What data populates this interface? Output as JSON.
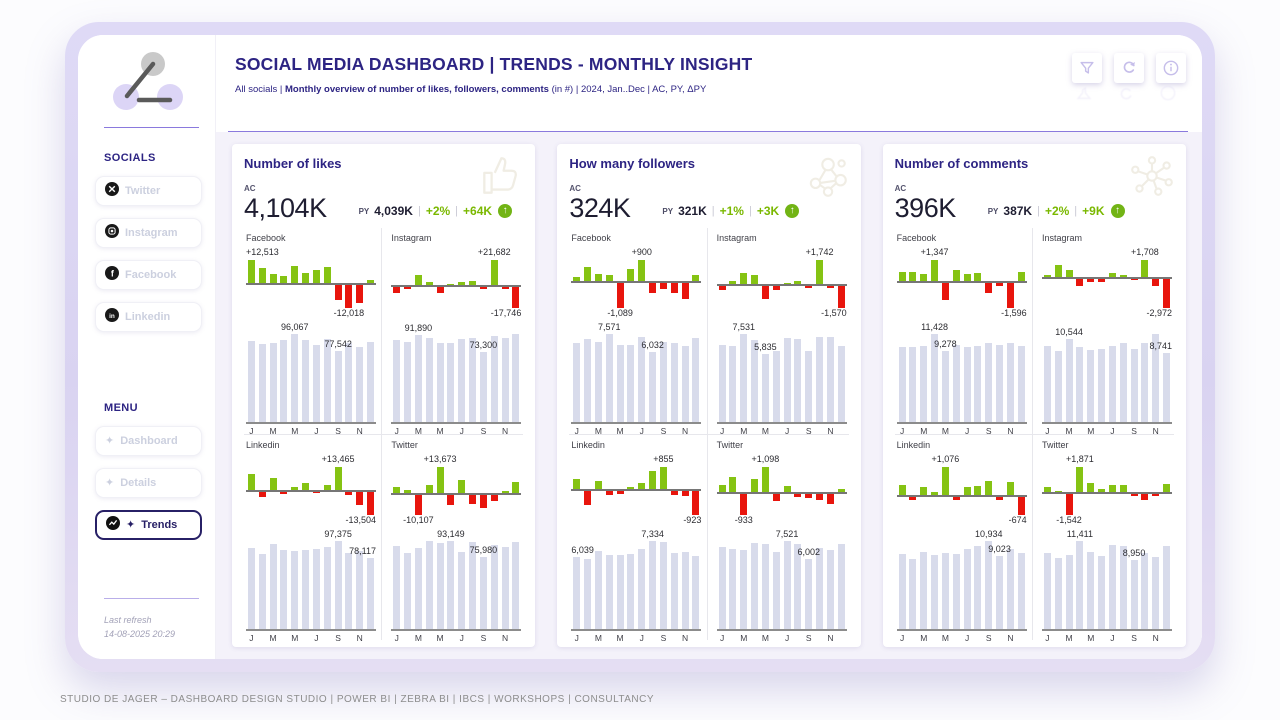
{
  "header": {
    "title": "SOCIAL MEDIA DASHBOARD | TRENDS - MONTHLY INSIGHT",
    "subtitle": {
      "pre": "All socials | ",
      "bold": "Monthly overview of number of likes, followers, comments",
      "post": " (in #) | 2024, Jan..Dec | AC, PY, ΔPY"
    },
    "toolbar_icons": [
      "filter-icon",
      "reset-icon",
      "info-icon"
    ]
  },
  "sidebar": {
    "logo_icon": "network-logo-icon",
    "socials_title": "SOCIALS",
    "socials": [
      {
        "label": "Twitter",
        "icon": "twitter-icon"
      },
      {
        "label": "Instagram",
        "icon": "instagram-icon"
      },
      {
        "label": "Facebook",
        "icon": "facebook-icon"
      },
      {
        "label": "Linkedin",
        "icon": "linkedin-icon"
      }
    ],
    "menu_title": "MENU",
    "menu": [
      {
        "label": "Dashboard",
        "active": false
      },
      {
        "label": "Details",
        "active": false
      },
      {
        "label": "Trends",
        "active": true
      }
    ],
    "last_refresh": {
      "label": "Last refresh",
      "value": "14-08-2025 20:29"
    }
  },
  "footer": {
    "text": "STUDIO DE JAGER – DASHBOARD DESIGN STUDIO | POWER BI | ZEBRA BI | IBCS | WORKSHOPS | CONSULTANCY"
  },
  "colors": {
    "accent_navy": "#2d2483",
    "divider_purple": "#8a79dd",
    "positive_green": "#85c313",
    "negative_red": "#e8150d",
    "kpi_green_text": "#7ab800",
    "column_fill": "#d8dbeb",
    "content_bg": "#f4f2fa"
  },
  "ticks": {
    "labels": [
      "J",
      "M",
      "M",
      "J",
      "S",
      "N"
    ],
    "indices": [
      0,
      2,
      4,
      6,
      8,
      10
    ]
  },
  "chart_data": [
    {
      "type": "bar",
      "title": "Number of likes",
      "icon": "thumbs-up-icon",
      "kpi": {
        "ac_label": "AC",
        "ac_value": "4,104K",
        "py_label": "PY",
        "py_value": "4,039K",
        "pct": "+2%",
        "delta": "+64K"
      },
      "categories": [
        "Jan",
        "Feb",
        "Mar",
        "Apr",
        "May",
        "Jun",
        "Jul",
        "Aug",
        "Sep",
        "Oct",
        "Nov",
        "Dec"
      ],
      "platforms": [
        {
          "name": "Facebook",
          "delta": [
            12513,
            8000,
            5200,
            4200,
            9500,
            5500,
            7400,
            9000,
            -7500,
            -12018,
            -9500,
            2000
          ],
          "delta_labels": [
            {
              "i": 0,
              "t": "+12,513"
            },
            {
              "i": 9,
              "t": "-12,018"
            }
          ],
          "values": [
            88000,
            85000,
            86500,
            90000,
            96067,
            89000,
            84000,
            91000,
            77542,
            86000,
            82000,
            87000
          ],
          "value_labels": [
            {
              "i": 4,
              "t": "96,067"
            },
            {
              "i": 8,
              "t": "77,542"
            }
          ]
        },
        {
          "name": "Instagram",
          "delta": [
            -4500,
            -900,
            9000,
            3200,
            -5000,
            400,
            2600,
            3600,
            -600,
            21682,
            -400,
            -17746
          ],
          "delta_labels": [
            {
              "i": 9,
              "t": "+21,682"
            },
            {
              "i": 11,
              "t": "-17,746"
            }
          ],
          "values": [
            86000,
            84000,
            91890,
            88000,
            83000,
            83500,
            87000,
            88000,
            73300,
            90000,
            88500,
            92500
          ],
          "value_labels": [
            {
              "i": 2,
              "t": "91,890"
            },
            {
              "i": 8,
              "t": "73,300"
            }
          ]
        },
        {
          "name": "Linkedin",
          "delta": [
            9500,
            -3000,
            7000,
            -1200,
            1500,
            3800,
            -900,
            2800,
            13465,
            -1500,
            -7500,
            -13504
          ],
          "delta_labels": [
            {
              "i": 8,
              "t": "+13,465"
            },
            {
              "i": 11,
              "t": "-13,504"
            }
          ],
          "values": [
            90000,
            83000,
            94000,
            87000,
            86000,
            87500,
            88500,
            91000,
            97375,
            84000,
            86000,
            78117
          ],
          "value_labels": [
            {
              "i": 8,
              "t": "97,375"
            },
            {
              "i": 11,
              "t": "78,117"
            }
          ]
        },
        {
          "name": "Twitter",
          "delta": [
            3500,
            1800,
            -10107,
            4500,
            13673,
            -5000,
            7000,
            -4500,
            -6500,
            -2800,
            1200,
            6000
          ],
          "delta_labels": [
            {
              "i": 4,
              "t": "+13,673"
            },
            {
              "i": 2,
              "t": "-10,107"
            }
          ],
          "values": [
            88000,
            80000,
            86000,
            93000,
            91000,
            93149,
            81000,
            92000,
            75980,
            89000,
            87000,
            92000
          ],
          "value_labels": [
            {
              "i": 5,
              "t": "93,149"
            },
            {
              "i": 8,
              "t": "75,980"
            }
          ]
        }
      ]
    },
    {
      "type": "bar",
      "title": "How many followers",
      "icon": "followers-network-icon",
      "kpi": {
        "ac_label": "AC",
        "ac_value": "324K",
        "py_label": "PY",
        "py_value": "321K",
        "pct": "+1%",
        "delta": "+3K"
      },
      "categories": [
        "Jan",
        "Feb",
        "Mar",
        "Apr",
        "May",
        "Jun",
        "Jul",
        "Aug",
        "Sep",
        "Oct",
        "Nov",
        "Dec"
      ],
      "platforms": [
        {
          "name": "Facebook",
          "delta": [
            150,
            600,
            300,
            250,
            -1089,
            500,
            900,
            -450,
            -250,
            -450,
            -700,
            250
          ],
          "delta_labels": [
            {
              "i": 6,
              "t": "+900"
            },
            {
              "i": 4,
              "t": "-1,089"
            }
          ],
          "values": [
            6800,
            7100,
            6900,
            7571,
            6600,
            6650,
            7300,
            6032,
            6900,
            6800,
            6500,
            7200
          ],
          "value_labels": [
            {
              "i": 3,
              "t": "7,571"
            },
            {
              "i": 7,
              "t": "6,032"
            }
          ]
        },
        {
          "name": "Instagram",
          "delta": [
            -300,
            250,
            800,
            650,
            -950,
            -300,
            100,
            250,
            -60,
            1742,
            -80,
            -1570
          ],
          "delta_labels": [
            {
              "i": 9,
              "t": "+1,742"
            },
            {
              "i": 11,
              "t": "-1,570"
            }
          ],
          "values": [
            6600,
            6500,
            7531,
            7000,
            5835,
            6100,
            7200,
            7100,
            6050,
            7250,
            7250,
            6500
          ],
          "value_labels": [
            {
              "i": 2,
              "t": "7,531"
            },
            {
              "i": 4,
              "t": "5,835"
            }
          ]
        },
        {
          "name": "Linkedin",
          "delta": [
            400,
            -550,
            300,
            -150,
            -120,
            80,
            250,
            700,
            855,
            -150,
            -200,
            -923
          ],
          "delta_labels": [
            {
              "i": 8,
              "t": "+855"
            },
            {
              "i": 11,
              "t": "-923"
            }
          ],
          "values": [
            6039,
            5800,
            6500,
            6200,
            6150,
            6250,
            6700,
            7334,
            7250,
            6300,
            6450,
            6050
          ],
          "value_labels": [
            {
              "i": 0,
              "t": "6,039"
            },
            {
              "i": 7,
              "t": "7,334"
            }
          ]
        },
        {
          "name": "Twitter",
          "delta": [
            300,
            650,
            -933,
            550,
            1098,
            -300,
            250,
            -120,
            -200,
            -250,
            -450,
            120
          ],
          "delta_labels": [
            {
              "i": 4,
              "t": "+1,098"
            },
            {
              "i": 2,
              "t": "-933"
            }
          ],
          "values": [
            7000,
            6800,
            6750,
            7350,
            7300,
            6600,
            7521,
            7250,
            6002,
            6900,
            6750,
            7250
          ],
          "value_labels": [
            {
              "i": 6,
              "t": "7,521"
            },
            {
              "i": 8,
              "t": "6,002"
            }
          ]
        }
      ]
    },
    {
      "type": "bar",
      "title": "Number of comments",
      "icon": "share-nodes-icon",
      "kpi": {
        "ac_label": "AC",
        "ac_value": "396K",
        "py_label": "PY",
        "py_value": "387K",
        "pct": "+2%",
        "delta": "+9K"
      },
      "categories": [
        "Jan",
        "Feb",
        "Mar",
        "Apr",
        "May",
        "Jun",
        "Jul",
        "Aug",
        "Sep",
        "Oct",
        "Nov",
        "Dec"
      ],
      "platforms": [
        {
          "name": "Facebook",
          "delta": [
            550,
            600,
            450,
            1347,
            -1100,
            700,
            450,
            500,
            -650,
            -200,
            -1596,
            550
          ],
          "delta_labels": [
            {
              "i": 3,
              "t": "+1,347"
            },
            {
              "i": 10,
              "t": "-1,596"
            }
          ],
          "values": [
            9800,
            9750,
            9900,
            11428,
            9278,
            9950,
            9800,
            9850,
            10300,
            9950,
            10200,
            9900
          ],
          "value_labels": [
            {
              "i": 3,
              "t": "11,428"
            },
            {
              "i": 4,
              "t": "9,278"
            }
          ]
        },
        {
          "name": "Instagram",
          "delta": [
            80,
            1200,
            650,
            -750,
            -300,
            -350,
            400,
            200,
            -100,
            1708,
            -700,
            -2972
          ],
          "delta_labels": [
            {
              "i": 9,
              "t": "+1,708"
            },
            {
              "i": 11,
              "t": "-2,972"
            }
          ],
          "values": [
            9700,
            9100,
            10544,
            9500,
            9200,
            9250,
            9700,
            10000,
            9300,
            10100,
            11200,
            8741
          ],
          "value_labels": [
            {
              "i": 2,
              "t": "10,544"
            },
            {
              "i": 11,
              "t": "8,741"
            }
          ]
        },
        {
          "name": "Linkedin",
          "delta": [
            400,
            -120,
            300,
            120,
            1076,
            -120,
            300,
            350,
            550,
            -120,
            500,
            -674
          ],
          "delta_labels": [
            {
              "i": 4,
              "t": "+1,076"
            },
            {
              "i": 11,
              "t": "-674"
            }
          ],
          "values": [
            9300,
            8700,
            9600,
            9200,
            9400,
            9350,
            9900,
            10300,
            10934,
            9023,
            9900,
            9400
          ],
          "value_labels": [
            {
              "i": 8,
              "t": "10,934"
            },
            {
              "i": 9,
              "t": "9,023"
            }
          ]
        },
        {
          "name": "Twitter",
          "delta": [
            350,
            80,
            -1542,
            1871,
            650,
            250,
            500,
            550,
            -150,
            -400,
            -80,
            600
          ],
          "delta_labels": [
            {
              "i": 3,
              "t": "+1,871"
            },
            {
              "i": 2,
              "t": "-1,542"
            }
          ],
          "values": [
            9900,
            9200,
            9600,
            11411,
            10000,
            9500,
            10900,
            10700,
            8950,
            9800,
            9400,
            10800
          ],
          "value_labels": [
            {
              "i": 3,
              "t": "11,411"
            },
            {
              "i": 8,
              "t": "8,950"
            }
          ]
        }
      ]
    }
  ]
}
